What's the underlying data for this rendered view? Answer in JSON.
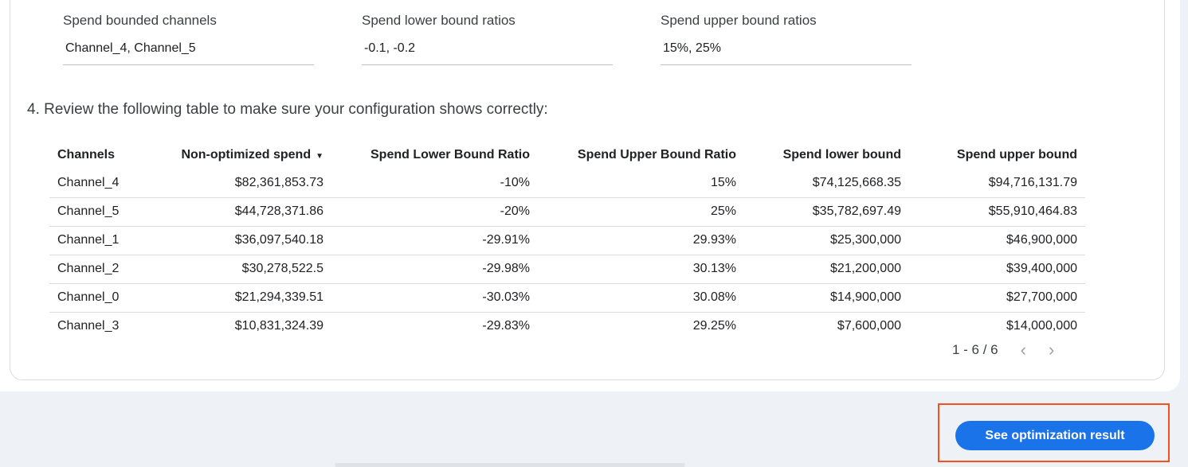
{
  "fields": [
    {
      "label": "Spend bounded channels",
      "value": "Channel_4, Channel_5"
    },
    {
      "label": "Spend lower bound ratios",
      "value": "-0.1, -0.2"
    },
    {
      "label": "Spend upper bound ratios",
      "value": "15%, 25%"
    }
  ],
  "step_text": "4. Review the following table to make sure your configuration shows correctly:",
  "table": {
    "headers": [
      "Channels",
      "Non-optimized spend",
      "Spend Lower Bound Ratio",
      "Spend Upper Bound Ratio",
      "Spend lower bound",
      "Spend upper bound"
    ],
    "sort_icon": "▼",
    "rows": [
      [
        "Channel_4",
        "$82,361,853.73",
        "-10%",
        "15%",
        "$74,125,668.35",
        "$94,716,131.79"
      ],
      [
        "Channel_5",
        "$44,728,371.86",
        "-20%",
        "25%",
        "$35,782,697.49",
        "$55,910,464.83"
      ],
      [
        "Channel_1",
        "$36,097,540.18",
        "-29.91%",
        "29.93%",
        "$25,300,000",
        "$46,900,000"
      ],
      [
        "Channel_2",
        "$30,278,522.5",
        "-29.98%",
        "30.13%",
        "$21,200,000",
        "$39,400,000"
      ],
      [
        "Channel_0",
        "$21,294,339.51",
        "-30.03%",
        "30.08%",
        "$14,900,000",
        "$27,700,000"
      ],
      [
        "Channel_3",
        "$10,831,324.39",
        "-29.83%",
        "29.25%",
        "$7,600,000",
        "$14,000,000"
      ]
    ]
  },
  "pager": {
    "range": "1 - 6 / 6",
    "prev": "‹",
    "next": "›"
  },
  "button": {
    "label": "See optimization result"
  },
  "colors": {
    "accent": "#1a73e8",
    "highlight": "#f4511e"
  }
}
